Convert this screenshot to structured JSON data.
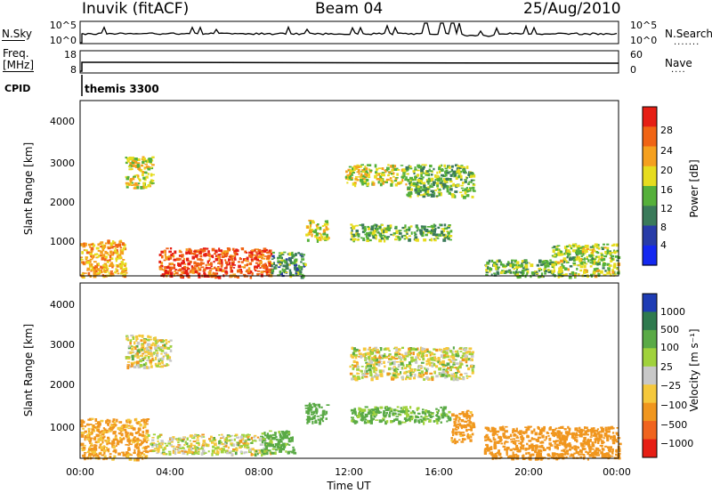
{
  "header": {
    "station": "Inuvik (fitACF)",
    "beam": "Beam 04",
    "date": "25/Aug/2010"
  },
  "noise_panel": {
    "left_label": "N.Sky",
    "right_label": "N.Search",
    "left_ticks": [
      "10^5",
      "10^0"
    ],
    "right_ticks": [
      "10^5",
      "10^0"
    ]
  },
  "freq_panel": {
    "left_label_1": "Freq.",
    "left_label_2": "[MHz]",
    "right_label": "Nave",
    "left_ticks": [
      "18",
      "8"
    ],
    "right_ticks": [
      "60",
      "0"
    ]
  },
  "cpid_panel": {
    "label": "CPID",
    "value": "themis 3300"
  },
  "axes": {
    "ylabel": "Slant Range [km]",
    "xlabel": "Time UT",
    "y_ticks": [
      "1000",
      "2000",
      "3000",
      "4000"
    ],
    "x_ticks": [
      "00:00",
      "04:00",
      "08:00",
      "12:00",
      "16:00",
      "20:00",
      "00:00"
    ]
  },
  "power_scale": {
    "label": "Power [dB]",
    "ticks": [
      "4",
      "8",
      "12",
      "16",
      "20",
      "24",
      "28"
    ],
    "colors": [
      "#1428f0",
      "#283ca8",
      "#3a7a5a",
      "#55b03a",
      "#e6dc1e",
      "#f5a01e",
      "#f06414",
      "#e61e14"
    ]
  },
  "velocity_scale": {
    "label": "Velocity [m s⁻¹]",
    "ticks": [
      "1000",
      "500",
      "100",
      "25",
      "−25",
      "−100",
      "−500",
      "−1000"
    ],
    "colors": [
      "#1e3cb4",
      "#2f7a4e",
      "#5aaa46",
      "#a0d23c",
      "#c8c8c8",
      "#f5c83c",
      "#f0961e",
      "#f0641e",
      "#e61e14"
    ]
  },
  "chart_data": [
    {
      "type": "heatmap",
      "title": "",
      "xlabel": "Time UT",
      "ylabel": "Slant Range [km]",
      "xlim": [
        "00:00",
        "24:00"
      ],
      "ylim": [
        180,
        4600
      ],
      "colorbar": "Power [dB]",
      "colorbar_range": [
        0,
        30
      ],
      "regions": [
        {
          "t_start": 0.0,
          "t_end": 2.0,
          "range_min": 180,
          "range_max": 1100,
          "value_db": 22
        },
        {
          "t_start": 2.0,
          "t_end": 3.2,
          "range_min": 2400,
          "range_max": 3200,
          "value_db": 18
        },
        {
          "t_start": 3.5,
          "t_end": 8.5,
          "range_min": 180,
          "range_max": 900,
          "value_db": 27
        },
        {
          "t_start": 8.5,
          "t_end": 10.0,
          "range_min": 180,
          "range_max": 800,
          "value_db": 12
        },
        {
          "t_start": 10.0,
          "t_end": 11.0,
          "range_min": 1100,
          "range_max": 1600,
          "value_db": 18
        },
        {
          "t_start": 11.8,
          "t_end": 14.5,
          "range_min": 2500,
          "range_max": 3000,
          "value_db": 18
        },
        {
          "t_start": 12.0,
          "t_end": 16.5,
          "range_min": 1100,
          "range_max": 1500,
          "value_db": 14
        },
        {
          "t_start": 14.5,
          "t_end": 17.5,
          "range_min": 2200,
          "range_max": 3000,
          "value_db": 14
        },
        {
          "t_start": 18.0,
          "t_end": 21.0,
          "range_min": 180,
          "range_max": 600,
          "value_db": 14
        },
        {
          "t_start": 21.0,
          "t_end": 24.0,
          "range_min": 180,
          "range_max": 1000,
          "value_db": 16
        }
      ]
    },
    {
      "type": "heatmap",
      "title": "",
      "xlabel": "Time UT",
      "ylabel": "Slant Range [km]",
      "xlim": [
        "00:00",
        "24:00"
      ],
      "ylim": [
        180,
        4600
      ],
      "colorbar": "Velocity [m s⁻¹]",
      "colorbar_range": [
        -1000,
        1000
      ],
      "regions": [
        {
          "t_start": 0.0,
          "t_end": 3.0,
          "range_min": 180,
          "range_max": 1200,
          "value_ms": -150
        },
        {
          "t_start": 3.0,
          "t_end": 8.5,
          "range_min": 300,
          "range_max": 800,
          "value_ms": 0
        },
        {
          "t_start": 8.0,
          "t_end": 9.5,
          "range_min": 300,
          "range_max": 900,
          "value_ms": 200
        },
        {
          "t_start": 2.0,
          "t_end": 4.0,
          "range_min": 2500,
          "range_max": 3300,
          "value_ms": 0
        },
        {
          "t_start": 10.0,
          "t_end": 11.0,
          "range_min": 1100,
          "range_max": 1600,
          "value_ms": 300
        },
        {
          "t_start": 12.0,
          "t_end": 17.5,
          "range_min": 2200,
          "range_max": 3000,
          "value_ms": 0
        },
        {
          "t_start": 12.0,
          "t_end": 16.5,
          "range_min": 1100,
          "range_max": 1500,
          "value_ms": 150
        },
        {
          "t_start": 16.5,
          "t_end": 17.5,
          "range_min": 600,
          "range_max": 1400,
          "value_ms": -200
        },
        {
          "t_start": 18.0,
          "t_end": 24.0,
          "range_min": 180,
          "range_max": 1000,
          "value_ms": -300
        }
      ]
    }
  ]
}
